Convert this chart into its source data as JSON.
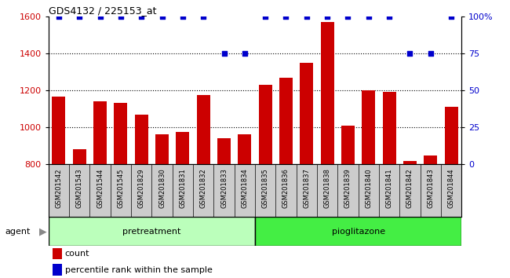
{
  "title": "GDS4132 / 225153_at",
  "samples": [
    "GSM201542",
    "GSM201543",
    "GSM201544",
    "GSM201545",
    "GSM201829",
    "GSM201830",
    "GSM201831",
    "GSM201832",
    "GSM201833",
    "GSM201834",
    "GSM201835",
    "GSM201836",
    "GSM201837",
    "GSM201838",
    "GSM201839",
    "GSM201840",
    "GSM201841",
    "GSM201842",
    "GSM201843",
    "GSM201844"
  ],
  "counts": [
    1165,
    880,
    1140,
    1130,
    1070,
    960,
    975,
    1175,
    940,
    960,
    1230,
    1270,
    1350,
    1570,
    1010,
    1200,
    1190,
    815,
    845,
    1110
  ],
  "percentile_ranks": [
    100,
    100,
    100,
    100,
    100,
    100,
    100,
    100,
    75,
    75,
    100,
    100,
    100,
    100,
    100,
    100,
    100,
    75,
    75,
    100
  ],
  "pretreatment_count": 10,
  "pioglitazone_count": 10,
  "ylim_left": [
    800,
    1600
  ],
  "ylim_right": [
    0,
    100
  ],
  "yticks_left": [
    800,
    1000,
    1200,
    1400,
    1600
  ],
  "yticks_right": [
    0,
    25,
    50,
    75,
    100
  ],
  "bar_color": "#cc0000",
  "dot_color": "#0000cc",
  "pretreatment_color": "#bbffbb",
  "pioglitazone_color": "#44ee44",
  "bg_color": "#cccccc",
  "grid_color": "#000000",
  "label_bg": "#cccccc",
  "dot_size": 15,
  "bar_width": 0.65
}
